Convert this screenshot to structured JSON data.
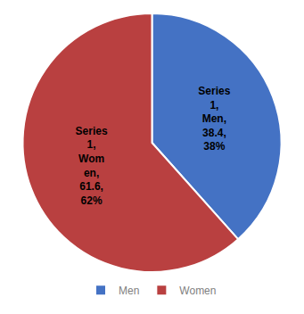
{
  "chart_data": {
    "type": "pie",
    "categories": [
      "Men",
      "Women"
    ],
    "values": [
      38.4,
      61.6
    ],
    "colors": [
      "#4472C4",
      "#B94040"
    ],
    "data_labels": true,
    "value_labels": [
      "Series\n1,\nMen,\n38.4,\n38%",
      "Series\n1,\nWom\nen,\n61.6,\n62%"
    ],
    "legend": "bottom"
  }
}
